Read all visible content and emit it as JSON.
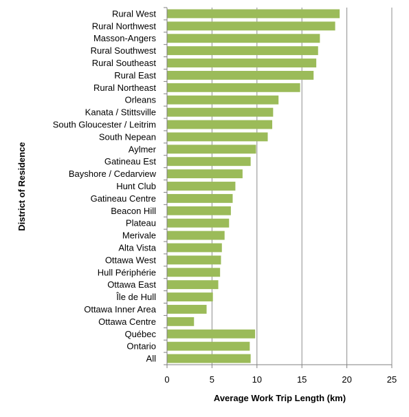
{
  "chart_data": {
    "type": "bar",
    "orientation": "horizontal",
    "xlabel": "Average Work Trip Length (km)",
    "ylabel": "District of Residence",
    "xlim": [
      0,
      25
    ],
    "xticks": [
      0,
      5,
      10,
      15,
      20,
      25
    ],
    "grid": "vertical",
    "legend": "none",
    "bar_color": "#9bbb59",
    "categories": [
      "Rural West",
      "Rural Northwest",
      "Masson-Angers",
      "Rural Southwest",
      "Rural Southeast",
      "Rural East",
      "Rural Northeast",
      "Orleans",
      "Kanata / Stittsville",
      "South Gloucester / Leitrim",
      "South Nepean",
      "Aylmer",
      "Gatineau Est",
      "Bayshore / Cedarview",
      "Hunt Club",
      "Gatineau Centre",
      "Beacon Hill",
      "Plateau",
      "Merivale",
      "Alta Vista",
      "Ottawa West",
      "Hull Périphérie",
      "Ottawa East",
      "Île de Hull",
      "Ottawa Inner Area",
      "Ottawa Centre",
      "Québec",
      "Ontario",
      "All"
    ],
    "values": [
      19.2,
      18.7,
      17.0,
      16.8,
      16.6,
      16.3,
      14.8,
      12.4,
      11.8,
      11.7,
      11.2,
      9.9,
      9.3,
      8.4,
      7.6,
      7.3,
      7.1,
      6.9,
      6.4,
      6.1,
      6.0,
      5.9,
      5.7,
      5.1,
      4.4,
      3.0,
      9.8,
      9.2,
      9.3
    ]
  }
}
